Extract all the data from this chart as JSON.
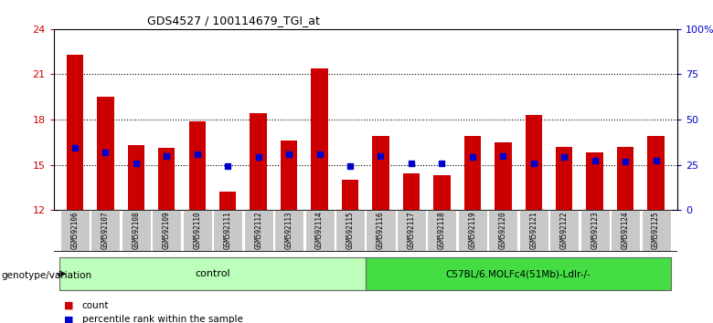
{
  "title": "GDS4527 / 100114679_TGI_at",
  "samples": [
    "GSM592106",
    "GSM592107",
    "GSM592108",
    "GSM592109",
    "GSM592110",
    "GSM592111",
    "GSM592112",
    "GSM592113",
    "GSM592114",
    "GSM592115",
    "GSM592116",
    "GSM592117",
    "GSM592118",
    "GSM592119",
    "GSM592120",
    "GSM592121",
    "GSM592122",
    "GSM592123",
    "GSM592124",
    "GSM592125"
  ],
  "bar_values": [
    22.3,
    19.5,
    16.3,
    16.1,
    17.85,
    13.2,
    18.4,
    16.6,
    21.4,
    14.0,
    16.9,
    14.4,
    14.3,
    16.9,
    16.5,
    18.3,
    16.2,
    15.8,
    16.2,
    16.9
  ],
  "percentile_values": [
    16.1,
    15.8,
    15.1,
    15.6,
    15.7,
    14.9,
    15.5,
    15.7,
    15.7,
    14.9,
    15.6,
    15.1,
    15.1,
    15.5,
    15.6,
    15.1,
    15.5,
    15.3,
    15.2,
    15.3
  ],
  "bar_color": "#cc0000",
  "percentile_color": "#0000cc",
  "ylim_left": [
    12,
    24
  ],
  "ylim_right": [
    0,
    100
  ],
  "yticks_left": [
    12,
    15,
    18,
    21,
    24
  ],
  "yticks_right": [
    0,
    25,
    50,
    75,
    100
  ],
  "ylabel_left_color": "#cc0000",
  "ylabel_right_color": "#0000cc",
  "grid_lines": [
    15,
    18,
    21
  ],
  "control_count": 10,
  "genotype_label": "genotype/variation",
  "group1_label": "control",
  "group2_label": "C57BL/6.MOLFc4(51Mb)-Ldlr-/-",
  "group1_color": "#bbffbb",
  "group2_color": "#44dd44",
  "xticklabel_bg": "#c8c8c8",
  "legend_count_label": "count",
  "legend_percentile_label": "percentile rank within the sample",
  "bar_width": 0.55,
  "background_color": "#ffffff"
}
